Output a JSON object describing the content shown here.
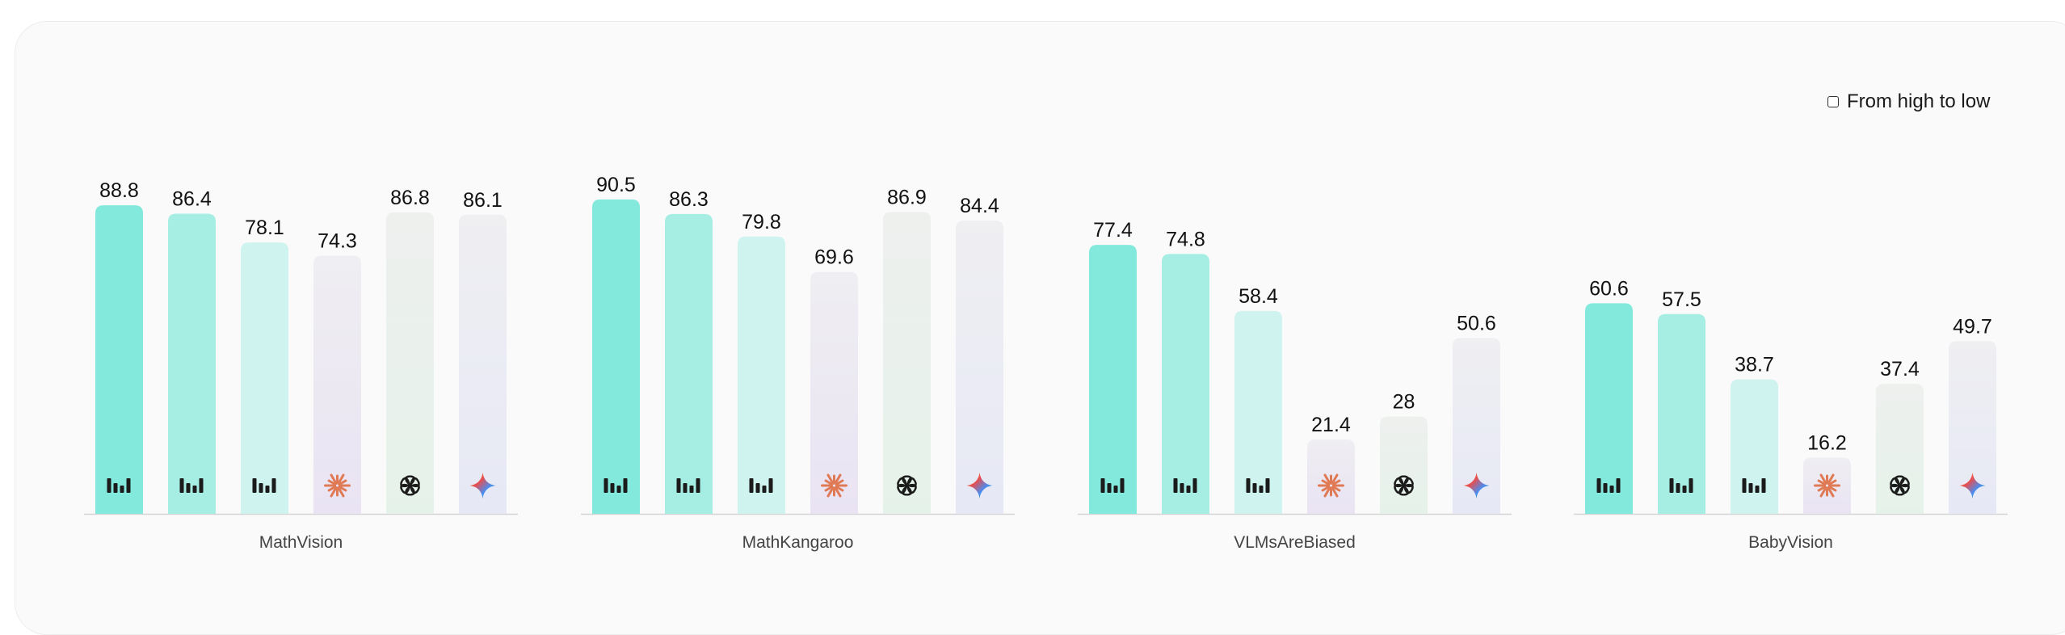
{
  "controls": {
    "sort_label": "From high to low",
    "sort_checked": false
  },
  "chart_data": {
    "type": "bar",
    "ylim": [
      0,
      100
    ],
    "grid": false,
    "legend": "none",
    "series_icons": [
      "model-logo-icon",
      "model-logo-icon",
      "model-logo-icon",
      "claude-icon",
      "openai-icon",
      "gemini-icon"
    ],
    "series_colors": [
      "#83e9dd",
      "#a6ede4",
      "#cff3ee",
      "#efeef2",
      "#eef0ee",
      "#efeff2"
    ],
    "series_gradient_bottom": [
      "#83e9dd",
      "#a6ede4",
      "#cff3ee",
      "#e9e3f3",
      "#e5f2ea",
      "#e6e8f5"
    ],
    "groups": [
      {
        "label": "MathVision",
        "values": [
          88.8,
          86.4,
          78.1,
          74.3,
          86.8,
          86.1
        ]
      },
      {
        "label": "MathKangaroo",
        "values": [
          90.5,
          86.3,
          79.8,
          69.6,
          86.9,
          84.4
        ]
      },
      {
        "label": "VLMsAreBiased",
        "values": [
          77.4,
          74.8,
          58.4,
          21.4,
          28,
          50.6
        ]
      },
      {
        "label": "BabyVision",
        "values": [
          60.6,
          57.5,
          38.7,
          16.2,
          37.4,
          49.7
        ]
      }
    ]
  }
}
